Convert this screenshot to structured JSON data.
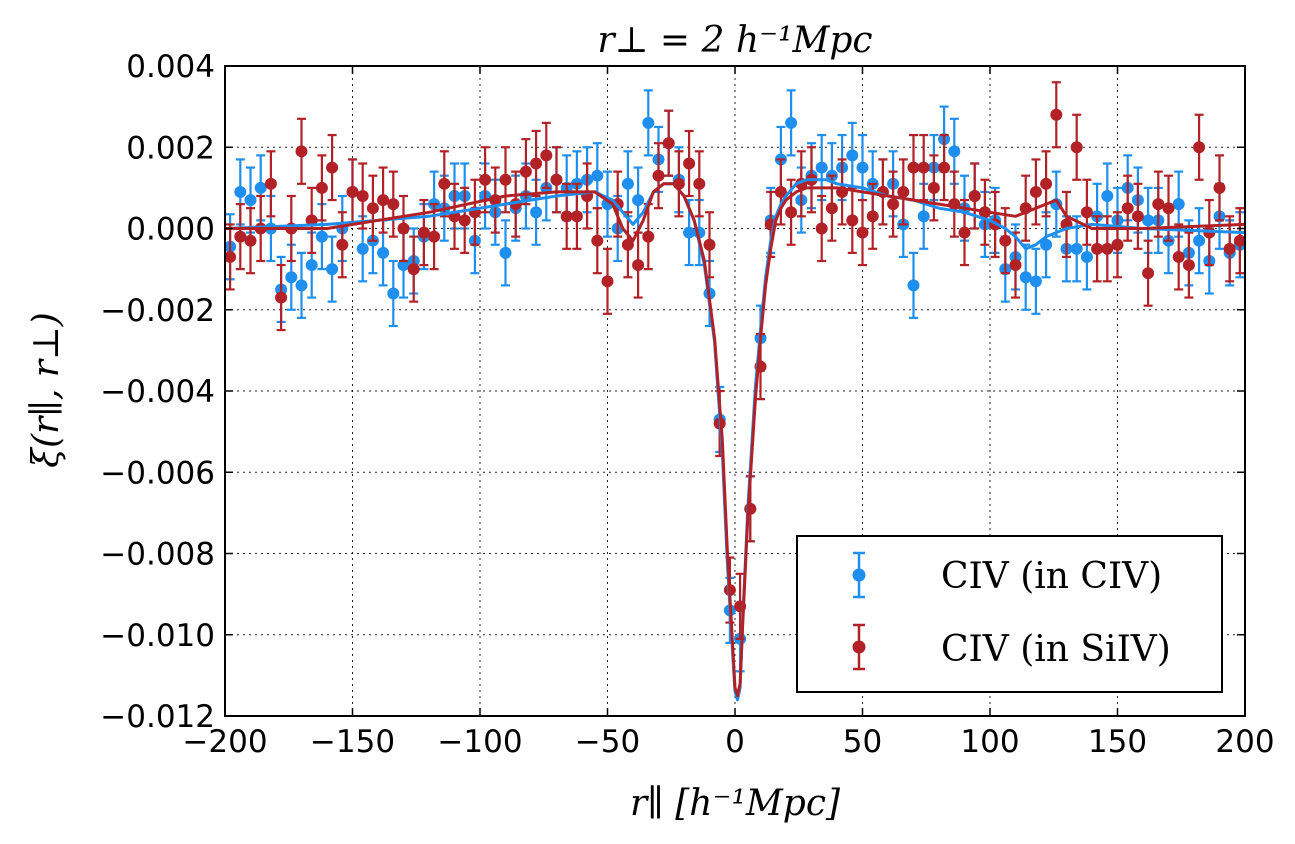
{
  "chart_data": {
    "type": "scatter",
    "title": "r⊥ = 2 h⁻¹Mpc",
    "xlabel": "r∥ [h⁻¹Mpc]",
    "ylabel": "ξ(r∥, r⊥)",
    "xlim": [
      -200,
      200
    ],
    "ylim": [
      -0.012,
      0.004
    ],
    "x_ticks": [
      -200,
      -150,
      -100,
      -50,
      0,
      50,
      100,
      150,
      200
    ],
    "x_tick_labels": [
      "−200",
      "−150",
      "−100",
      "−50",
      "0",
      "50",
      "100",
      "150",
      "200"
    ],
    "y_ticks": [
      0.004,
      0.002,
      0.0,
      -0.002,
      -0.004,
      -0.006,
      -0.008,
      -0.01,
      -0.012
    ],
    "y_tick_labels": [
      "0.004",
      "0.002",
      "0.000",
      "−0.002",
      "−0.004",
      "−0.006",
      "−0.008",
      "−0.010",
      "−0.012"
    ],
    "grid": true,
    "legend_position": "bottom-right",
    "series": [
      {
        "name": "CIV (in CIV)",
        "color": "#1f8fef",
        "err": 0.0008,
        "x": [
          -198,
          -194,
          -190,
          -186,
          -182,
          -178,
          -174,
          -170,
          -166,
          -162,
          -158,
          -154,
          -150,
          -146,
          -142,
          -138,
          -134,
          -130,
          -126,
          -122,
          -118,
          -114,
          -110,
          -106,
          -102,
          -98,
          -94,
          -90,
          -86,
          -82,
          -78,
          -74,
          -70,
          -66,
          -62,
          -58,
          -54,
          -50,
          -46,
          -42,
          -38,
          -34,
          -30,
          -26,
          -22,
          -18,
          -14,
          -10,
          -6,
          -2,
          2,
          6,
          10,
          14,
          18,
          22,
          26,
          30,
          34,
          38,
          42,
          46,
          50,
          54,
          58,
          62,
          66,
          70,
          74,
          78,
          82,
          86,
          90,
          94,
          98,
          102,
          106,
          110,
          114,
          118,
          122,
          126,
          130,
          134,
          138,
          142,
          146,
          150,
          154,
          158,
          162,
          166,
          170,
          174,
          178,
          182,
          186,
          190,
          194,
          198
        ],
        "y": [
          -0.00045,
          0.0009,
          0.0007,
          0.001,
          0.0,
          -0.0015,
          -0.0012,
          -0.0014,
          -0.0009,
          -0.0002,
          -0.001,
          0.0,
          0.0009,
          -0.0005,
          -0.0003,
          -0.0006,
          -0.0016,
          -0.0009,
          -0.0008,
          -0.0002,
          0.0006,
          0.0005,
          0.0008,
          0.0008,
          -0.0003,
          0.0008,
          0.0004,
          -0.0006,
          0.0005,
          0.0008,
          0.0004,
          0.001,
          0.0012,
          0.001,
          0.0011,
          0.0012,
          0.0013,
          0.0006,
          0.0,
          0.0011,
          0.0007,
          0.0026,
          0.0017,
          0.0021,
          0.0012,
          -0.0001,
          -0.0001,
          -0.0016,
          -0.0047,
          -0.0094,
          -0.0101,
          -0.0069,
          -0.0027,
          0.0002,
          0.0017,
          0.0026,
          0.0007,
          0.0013,
          0.0015,
          0.0013,
          0.0015,
          0.0018,
          0.0015,
          0.0011,
          0.0009,
          0.0011,
          0.0001,
          -0.0014,
          0.0003,
          0.0015,
          0.0022,
          0.0019,
          0.0005,
          0.0008,
          0.0001,
          0.0002,
          -0.001,
          -0.0007,
          -0.0012,
          -0.0013,
          -0.0004,
          0.0006,
          -0.0005,
          -0.0005,
          -0.0007,
          0.0003,
          0.0008,
          0.0002,
          0.001,
          0.0007,
          0.0002,
          0.0002,
          -0.0003,
          0.0006,
          -0.0006,
          -0.0003,
          -0.0008,
          0.0003,
          -0.0006,
          -0.0004
        ]
      },
      {
        "name": "CIV (in SiIV)",
        "color": "#b22126",
        "err": 0.0008,
        "x": [
          -198,
          -194,
          -190,
          -186,
          -182,
          -178,
          -174,
          -170,
          -166,
          -162,
          -158,
          -154,
          -150,
          -146,
          -142,
          -138,
          -134,
          -130,
          -126,
          -122,
          -118,
          -114,
          -110,
          -106,
          -102,
          -98,
          -94,
          -90,
          -86,
          -82,
          -78,
          -74,
          -70,
          -66,
          -62,
          -58,
          -54,
          -50,
          -46,
          -42,
          -38,
          -34,
          -30,
          -26,
          -22,
          -18,
          -14,
          -10,
          -6,
          -2,
          2,
          6,
          10,
          14,
          18,
          22,
          26,
          30,
          34,
          38,
          42,
          46,
          50,
          54,
          58,
          62,
          66,
          70,
          74,
          78,
          82,
          86,
          90,
          94,
          98,
          102,
          106,
          110,
          114,
          118,
          122,
          126,
          130,
          134,
          138,
          142,
          146,
          150,
          154,
          158,
          162,
          166,
          170,
          174,
          178,
          182,
          186,
          190,
          194,
          198
        ],
        "y": [
          -0.0007,
          -0.0002,
          -0.0003,
          0.0,
          0.0011,
          -0.0017,
          0.0,
          0.0019,
          0.0002,
          0.001,
          0.0015,
          -0.0004,
          0.0009,
          0.0008,
          0.0005,
          0.0007,
          0.0006,
          0.0,
          -0.001,
          -0.0001,
          -0.0002,
          0.0011,
          0.0003,
          0.0002,
          0.0004,
          0.0012,
          0.0007,
          0.0012,
          0.0006,
          0.0014,
          0.0016,
          0.0018,
          0.0012,
          0.0003,
          0.0003,
          0.0008,
          -0.0003,
          -0.0013,
          0.0006,
          -0.0004,
          -0.0009,
          -0.0002,
          0.0013,
          0.0021,
          0.0011,
          0.0016,
          0.0011,
          -0.0004,
          -0.0048,
          -0.0089,
          -0.0093,
          -0.0069,
          -0.0034,
          0.0001,
          0.0009,
          0.0004,
          0.0011,
          0.0012,
          0.0,
          0.0005,
          0.0009,
          0.0002,
          -0.0001,
          0.0003,
          0.0009,
          0.0006,
          0.0009,
          0.0015,
          0.0015,
          0.001,
          0.0015,
          0.0006,
          -0.0001,
          0.0008,
          0.0004,
          0.0001,
          -0.0003,
          -0.0009,
          0.0005,
          0.0009,
          0.0011,
          0.0028,
          0.0001,
          0.002,
          0.0004,
          -0.0005,
          -0.0005,
          -0.0004,
          0.0005,
          0.0003,
          -0.0011,
          0.0006,
          0.0005,
          -0.0007,
          -0.0009,
          0.002,
          -0.0001,
          0.001,
          -0.0005,
          -0.0003
        ]
      }
    ],
    "fit_curves": [
      {
        "name": "CIV (in CIV) model",
        "color": "#1f8fef",
        "x": [
          -200,
          -160,
          -120,
          -90,
          -70,
          -55,
          -48,
          -44,
          -40,
          -36,
          -32,
          -28,
          -24,
          -20,
          -16,
          -12,
          -8,
          -5,
          -3,
          -1,
          0,
          1,
          2,
          3,
          5,
          8,
          10,
          12,
          14,
          16,
          18,
          20,
          24,
          28,
          32,
          36,
          40,
          50,
          60,
          70,
          80,
          90,
          100,
          106,
          110,
          114,
          118,
          122,
          130,
          140,
          160,
          200
        ],
        "y": [
          0.0,
          0.0001,
          0.0003,
          0.0006,
          0.0008,
          0.0009,
          0.0007,
          0.0004,
          0.0001,
          0.0004,
          0.0009,
          0.0011,
          0.0011,
          0.0008,
          0.0002,
          -0.0009,
          -0.0028,
          -0.0055,
          -0.0082,
          -0.0104,
          -0.0114,
          -0.0116,
          -0.0113,
          -0.0097,
          -0.0069,
          -0.0039,
          -0.0025,
          -0.0012,
          -0.0003,
          0.0003,
          0.0006,
          0.0008,
          0.0011,
          0.0012,
          0.0012,
          0.0012,
          0.0011,
          0.001,
          0.0008,
          0.0007,
          0.0005,
          0.0004,
          0.0002,
          0.0,
          -0.0002,
          -0.0005,
          -0.0004,
          -0.0002,
          0.0,
          0.0001,
          0.0,
          -0.0001
        ]
      },
      {
        "name": "CIV (in SiIV) model",
        "color": "#b22126",
        "x": [
          -200,
          -160,
          -120,
          -90,
          -70,
          -55,
          -48,
          -44,
          -40,
          -36,
          -32,
          -28,
          -24,
          -20,
          -16,
          -12,
          -8,
          -5,
          -3,
          -1,
          0,
          1,
          2,
          3,
          5,
          8,
          10,
          12,
          14,
          16,
          18,
          20,
          24,
          28,
          32,
          36,
          40,
          50,
          60,
          70,
          80,
          90,
          100,
          110,
          118,
          126,
          130,
          140,
          160,
          200
        ],
        "y": [
          0.0,
          0.0,
          0.0004,
          0.0008,
          0.0009,
          0.0009,
          0.0006,
          0.0,
          -0.0003,
          0.0002,
          0.0009,
          0.0011,
          0.0011,
          0.0008,
          0.0002,
          -0.0008,
          -0.0027,
          -0.0052,
          -0.0079,
          -0.0102,
          -0.0113,
          -0.0115,
          -0.0112,
          -0.0098,
          -0.0071,
          -0.0042,
          -0.0027,
          -0.0014,
          -0.0005,
          0.0002,
          0.0005,
          0.0007,
          0.0009,
          0.001,
          0.001,
          0.001,
          0.001,
          0.0009,
          0.0008,
          0.0007,
          0.0006,
          0.0005,
          0.0004,
          0.0003,
          0.0005,
          0.0007,
          0.0003,
          0.0,
          0.0,
          0.0001
        ]
      }
    ]
  }
}
